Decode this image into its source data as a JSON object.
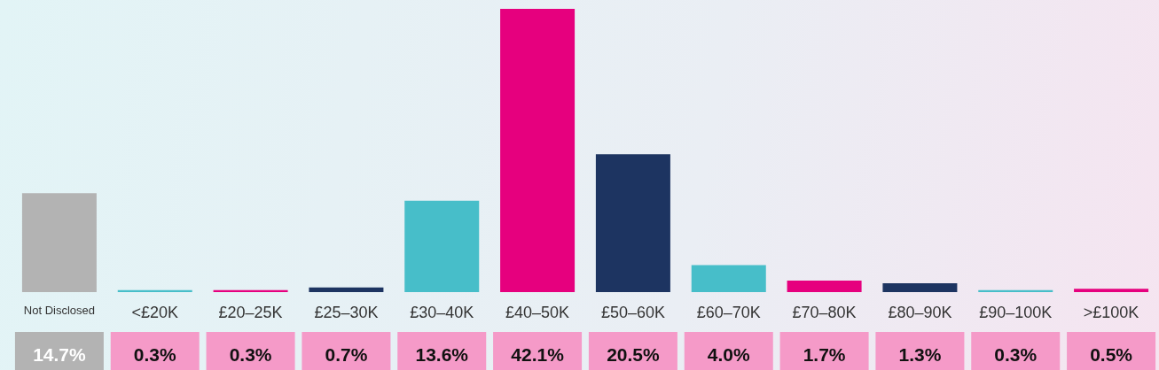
{
  "chart_data": {
    "type": "bar",
    "categories": [
      "Not Disclosed",
      "<£20K",
      "£20–25K",
      "£25–30K",
      "£30–40K",
      "£40–50K",
      "£50–60K",
      "£60–70K",
      "£70–80K",
      "£80–90K",
      "£90–100K",
      ">£100K"
    ],
    "values": [
      14.7,
      0.3,
      0.3,
      0.7,
      13.6,
      42.1,
      20.5,
      4.0,
      1.7,
      1.3,
      0.3,
      0.5
    ],
    "colors": [
      "#b3b3b3",
      "#47bec9",
      "#e6007e",
      "#1d3461",
      "#47bec9",
      "#e6007e",
      "#1d3461",
      "#47bec9",
      "#e6007e",
      "#1d3461",
      "#47bec9",
      "#e6007e"
    ],
    "value_labels": [
      "14.7%",
      "0.3%",
      "0.3%",
      "0.7%",
      "13.6%",
      "42.1%",
      "20.5%",
      "4.0%",
      "1.7%",
      "1.3%",
      "0.3%",
      "0.5%"
    ]
  }
}
